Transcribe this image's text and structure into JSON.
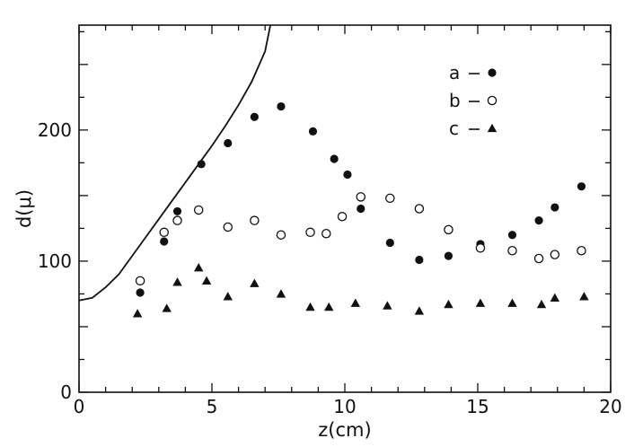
{
  "chart_data": {
    "type": "scatter",
    "xlabel": "z(cm)",
    "ylabel": "d(μ)",
    "xlim": [
      0,
      20
    ],
    "ylim": [
      0,
      280
    ],
    "x_ticks": [
      0,
      5,
      10,
      15,
      20
    ],
    "x_tick_labels": [
      "0",
      "5",
      "10",
      "15",
      "20"
    ],
    "y_ticks": [
      0,
      100,
      200
    ],
    "y_tick_labels": [
      "0",
      "100",
      "200"
    ],
    "grid": false,
    "legend_position": "top-right",
    "curve": {
      "type": "line",
      "x": [
        0,
        0.5,
        1.0,
        1.5,
        2.0,
        2.5,
        3.0,
        3.5,
        4.0,
        4.5,
        5.0,
        5.5,
        6.0,
        6.5,
        7.0,
        7.2
      ],
      "y": [
        70,
        72,
        80,
        90,
        104,
        118,
        132,
        146,
        160,
        174,
        188,
        203,
        219,
        237,
        260,
        280
      ]
    },
    "series": [
      {
        "name": "a",
        "marker": "filled-circle",
        "x": [
          2.3,
          3.2,
          3.7,
          4.6,
          5.6,
          6.6,
          7.6,
          8.8,
          9.6,
          10.1,
          10.6,
          11.7,
          12.8,
          13.9,
          15.1,
          16.3,
          17.3,
          17.9,
          18.9
        ],
        "y": [
          76,
          115,
          138,
          174,
          190,
          210,
          218,
          199,
          178,
          166,
          140,
          114,
          101,
          104,
          113,
          120,
          131,
          141,
          157
        ]
      },
      {
        "name": "b",
        "marker": "open-circle",
        "x": [
          2.3,
          3.2,
          3.7,
          4.5,
          5.6,
          6.6,
          7.6,
          8.7,
          9.3,
          9.9,
          10.6,
          11.7,
          12.8,
          13.9,
          15.1,
          16.3,
          17.3,
          17.9,
          18.9
        ],
        "y": [
          85,
          122,
          131,
          139,
          126,
          131,
          120,
          122,
          121,
          134,
          149,
          148,
          140,
          124,
          110,
          108,
          102,
          105,
          108
        ]
      },
      {
        "name": "c",
        "marker": "filled-triangle",
        "x": [
          2.2,
          3.3,
          3.7,
          4.5,
          4.8,
          5.6,
          6.6,
          7.6,
          8.7,
          9.4,
          10.4,
          11.6,
          12.8,
          13.9,
          15.1,
          16.3,
          17.4,
          17.9,
          19.0
        ],
        "y": [
          60,
          64,
          84,
          95,
          85,
          73,
          83,
          75,
          65,
          65,
          68,
          66,
          62,
          67,
          68,
          68,
          67,
          72,
          73
        ]
      }
    ]
  }
}
